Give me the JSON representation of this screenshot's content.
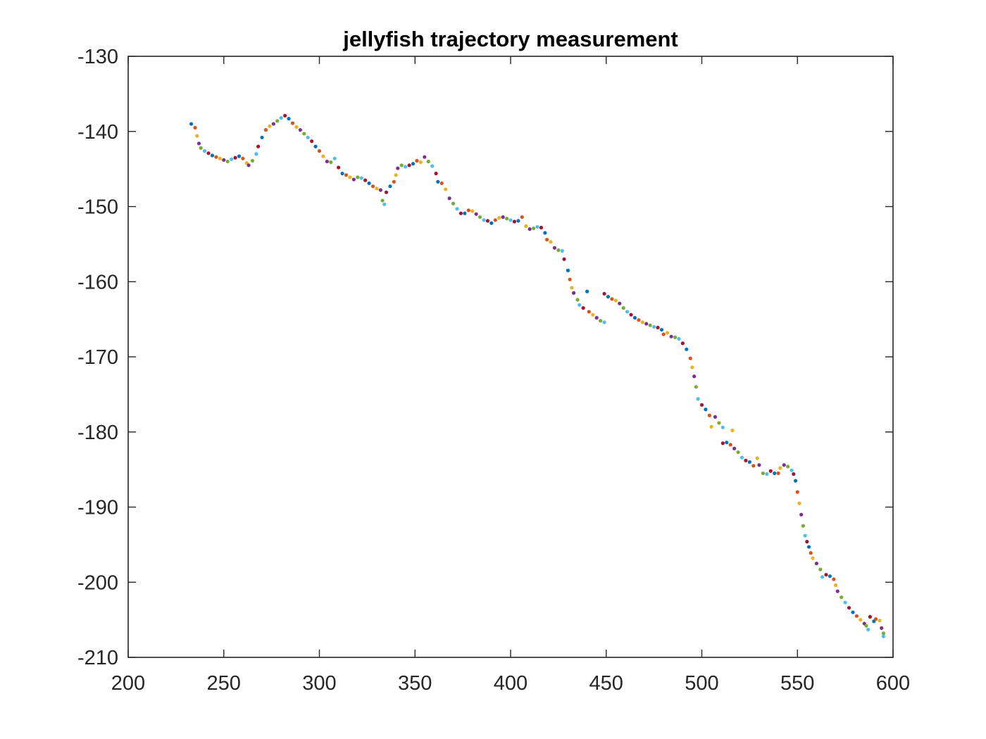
{
  "chart_data": {
    "type": "scatter",
    "title": "jellyfish trajectory measurement",
    "xlabel": "",
    "ylabel": "",
    "xlim": [
      200,
      600
    ],
    "ylim": [
      -210,
      -130
    ],
    "xticks": [
      200,
      250,
      300,
      350,
      400,
      450,
      500,
      550,
      600
    ],
    "yticks": [
      -130,
      -140,
      -150,
      -160,
      -170,
      -180,
      -190,
      -200,
      -210
    ],
    "xtick_labels": [
      "200",
      "250",
      "300",
      "350",
      "400",
      "450",
      "500",
      "550",
      "600"
    ],
    "ytick_labels": [
      "-130",
      "-140",
      "-150",
      "-160",
      "-170",
      "-180",
      "-190",
      "-200",
      "-210"
    ],
    "grid": false,
    "box": true,
    "marker_colors": [
      "#0072BD",
      "#D95319",
      "#EDB120",
      "#7E2F8E",
      "#77AC30",
      "#4DBEEE",
      "#A2142F"
    ],
    "points": [
      [
        233,
        -139.0
      ],
      [
        235,
        -139.5
      ],
      [
        236,
        -140.6
      ],
      [
        237,
        -141.6
      ],
      [
        238,
        -142.2
      ],
      [
        240,
        -142.6
      ],
      [
        242,
        -142.9
      ],
      [
        244,
        -143.2
      ],
      [
        246,
        -143.4
      ],
      [
        248,
        -143.6
      ],
      [
        250,
        -143.8
      ],
      [
        252,
        -144.0
      ],
      [
        254,
        -143.7
      ],
      [
        256,
        -143.5
      ],
      [
        258,
        -143.3
      ],
      [
        260,
        -143.6
      ],
      [
        262,
        -144.2
      ],
      [
        263,
        -144.5
      ],
      [
        265,
        -143.9
      ],
      [
        267,
        -143.0
      ],
      [
        268,
        -142.0
      ],
      [
        270,
        -140.8
      ],
      [
        272,
        -139.8
      ],
      [
        274,
        -139.3
      ],
      [
        276,
        -139.0
      ],
      [
        278,
        -138.6
      ],
      [
        280,
        -138.2
      ],
      [
        282,
        -137.9
      ],
      [
        284,
        -138.3
      ],
      [
        286,
        -138.9
      ],
      [
        288,
        -139.4
      ],
      [
        290,
        -139.8
      ],
      [
        292,
        -140.3
      ],
      [
        294,
        -140.8
      ],
      [
        296,
        -141.3
      ],
      [
        298,
        -142.0
      ],
      [
        300,
        -142.6
      ],
      [
        302,
        -143.3
      ],
      [
        304,
        -144.0
      ],
      [
        306,
        -144.1
      ],
      [
        308,
        -143.6
      ],
      [
        310,
        -144.8
      ],
      [
        312,
        -145.6
      ],
      [
        314,
        -145.8
      ],
      [
        316,
        -146.1
      ],
      [
        318,
        -146.4
      ],
      [
        320,
        -146.1
      ],
      [
        322,
        -146.2
      ],
      [
        324,
        -146.5
      ],
      [
        326,
        -146.9
      ],
      [
        328,
        -147.3
      ],
      [
        330,
        -147.6
      ],
      [
        332,
        -147.8
      ],
      [
        333,
        -149.2
      ],
      [
        334,
        -149.7
      ],
      [
        335,
        -148.1
      ],
      [
        337,
        -147.3
      ],
      [
        339,
        -146.7
      ],
      [
        340,
        -145.8
      ],
      [
        341,
        -144.9
      ],
      [
        343,
        -144.5
      ],
      [
        345,
        -144.7
      ],
      [
        347,
        -144.5
      ],
      [
        349,
        -144.3
      ],
      [
        351,
        -143.9
      ],
      [
        353,
        -144.1
      ],
      [
        355,
        -143.4
      ],
      [
        357,
        -144.0
      ],
      [
        359,
        -144.6
      ],
      [
        361,
        -145.6
      ],
      [
        362,
        -146.7
      ],
      [
        364,
        -146.9
      ],
      [
        366,
        -147.7
      ],
      [
        368,
        -148.9
      ],
      [
        370,
        -149.6
      ],
      [
        372,
        -150.3
      ],
      [
        374,
        -150.9
      ],
      [
        376,
        -150.9
      ],
      [
        378,
        -150.5
      ],
      [
        380,
        -150.6
      ],
      [
        382,
        -151.0
      ],
      [
        384,
        -151.4
      ],
      [
        386,
        -151.8
      ],
      [
        388,
        -151.9
      ],
      [
        390,
        -152.2
      ],
      [
        392,
        -151.8
      ],
      [
        394,
        -151.5
      ],
      [
        396,
        -151.4
      ],
      [
        398,
        -151.6
      ],
      [
        400,
        -151.8
      ],
      [
        402,
        -152.0
      ],
      [
        404,
        -151.9
      ],
      [
        406,
        -151.4
      ],
      [
        408,
        -152.6
      ],
      [
        410,
        -153.0
      ],
      [
        412,
        -152.9
      ],
      [
        414,
        -152.7
      ],
      [
        416,
        -152.8
      ],
      [
        418,
        -153.5
      ],
      [
        419,
        -154.4
      ],
      [
        421,
        -154.7
      ],
      [
        423,
        -155.5
      ],
      [
        425,
        -155.8
      ],
      [
        427,
        -155.9
      ],
      [
        428,
        -157.0
      ],
      [
        430,
        -158.5
      ],
      [
        431,
        -159.7
      ],
      [
        432,
        -160.8
      ],
      [
        433,
        -161.5
      ],
      [
        435,
        -162.4
      ],
      [
        436,
        -163.1
      ],
      [
        438,
        -163.5
      ],
      [
        440,
        -161.3
      ],
      [
        441,
        -164.0
      ],
      [
        443,
        -164.4
      ],
      [
        445,
        -164.8
      ],
      [
        447,
        -165.2
      ],
      [
        449,
        -165.4
      ],
      [
        449,
        -161.6
      ],
      [
        451,
        -162.0
      ],
      [
        453,
        -162.3
      ],
      [
        455,
        -162.5
      ],
      [
        457,
        -162.9
      ],
      [
        459,
        -163.5
      ],
      [
        461,
        -164.0
      ],
      [
        463,
        -164.4
      ],
      [
        465,
        -164.8
      ],
      [
        467,
        -165.1
      ],
      [
        469,
        -165.4
      ],
      [
        471,
        -165.6
      ],
      [
        473,
        -165.8
      ],
      [
        475,
        -166.0
      ],
      [
        477,
        -166.1
      ],
      [
        479,
        -166.4
      ],
      [
        480,
        -167.0
      ],
      [
        482,
        -166.8
      ],
      [
        484,
        -167.3
      ],
      [
        486,
        -167.4
      ],
      [
        488,
        -167.6
      ],
      [
        490,
        -168.2
      ],
      [
        492,
        -169.0
      ],
      [
        494,
        -170.2
      ],
      [
        495,
        -171.4
      ],
      [
        496,
        -172.6
      ],
      [
        497,
        -174.0
      ],
      [
        498,
        -175.6
      ],
      [
        500,
        -176.4
      ],
      [
        502,
        -177.0
      ],
      [
        504,
        -177.8
      ],
      [
        505,
        -179.3
      ],
      [
        507,
        -178.0
      ],
      [
        509,
        -178.8
      ],
      [
        511,
        -179.4
      ],
      [
        511,
        -181.5
      ],
      [
        513,
        -181.4
      ],
      [
        515,
        -181.7
      ],
      [
        516,
        -179.8
      ],
      [
        517,
        -182.2
      ],
      [
        519,
        -182.7
      ],
      [
        521,
        -183.4
      ],
      [
        523,
        -183.8
      ],
      [
        525,
        -184.0
      ],
      [
        527,
        -184.5
      ],
      [
        529,
        -183.5
      ],
      [
        530,
        -184.4
      ],
      [
        532,
        -185.5
      ],
      [
        534,
        -185.6
      ],
      [
        536,
        -185.2
      ],
      [
        538,
        -185.5
      ],
      [
        540,
        -185.5
      ],
      [
        541,
        -184.8
      ],
      [
        543,
        -184.4
      ],
      [
        545,
        -184.6
      ],
      [
        547,
        -185.1
      ],
      [
        548,
        -185.6
      ],
      [
        549,
        -186.5
      ],
      [
        550,
        -188.0
      ],
      [
        551,
        -189.5
      ],
      [
        552,
        -191.0
      ],
      [
        553,
        -192.5
      ],
      [
        554,
        -193.8
      ],
      [
        555,
        -194.6
      ],
      [
        556,
        -195.3
      ],
      [
        557,
        -196.1
      ],
      [
        558,
        -196.8
      ],
      [
        560,
        -197.5
      ],
      [
        562,
        -198.3
      ],
      [
        563,
        -199.3
      ],
      [
        565,
        -199.0
      ],
      [
        567,
        -199.2
      ],
      [
        569,
        -199.6
      ],
      [
        570,
        -200.4
      ],
      [
        571,
        -201.2
      ],
      [
        573,
        -202.0
      ],
      [
        575,
        -202.7
      ],
      [
        577,
        -203.4
      ],
      [
        579,
        -204.0
      ],
      [
        581,
        -204.5
      ],
      [
        583,
        -205.0
      ],
      [
        585,
        -205.5
      ],
      [
        586,
        -205.8
      ],
      [
        587,
        -206.3
      ],
      [
        588,
        -204.6
      ],
      [
        590,
        -205.2
      ],
      [
        591,
        -204.9
      ],
      [
        593,
        -205.1
      ],
      [
        594,
        -206.1
      ],
      [
        595,
        -206.8
      ],
      [
        595,
        -207.2
      ]
    ]
  }
}
